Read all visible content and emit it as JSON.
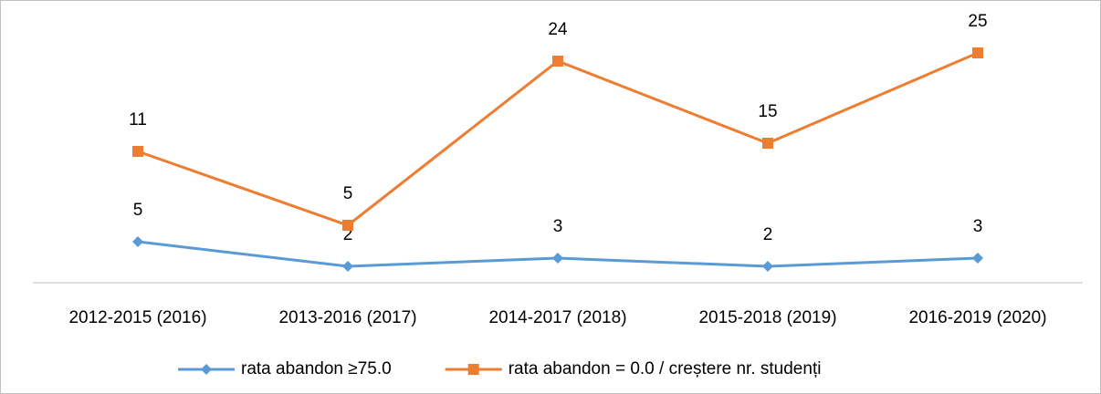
{
  "chart_data": {
    "type": "line",
    "stacked": true,
    "categories": [
      "2012-2015 (2016)",
      "2013-2016 (2017)",
      "2014-2017 (2018)",
      "2015-2018 (2019)",
      "2016-2019 (2020)"
    ],
    "series": [
      {
        "name": "rata abandon ≥75.0",
        "color": "#5b9bd5",
        "marker": "diamond",
        "values": [
          5,
          2,
          3,
          2,
          3
        ]
      },
      {
        "name": "rata abandon = 0.0 / creștere nr. studenți",
        "color": "#ed7d31",
        "marker": "square",
        "values": [
          11,
          5,
          24,
          15,
          25
        ]
      }
    ],
    "ylim": [
      0,
      30
    ],
    "legend": "bottom"
  }
}
